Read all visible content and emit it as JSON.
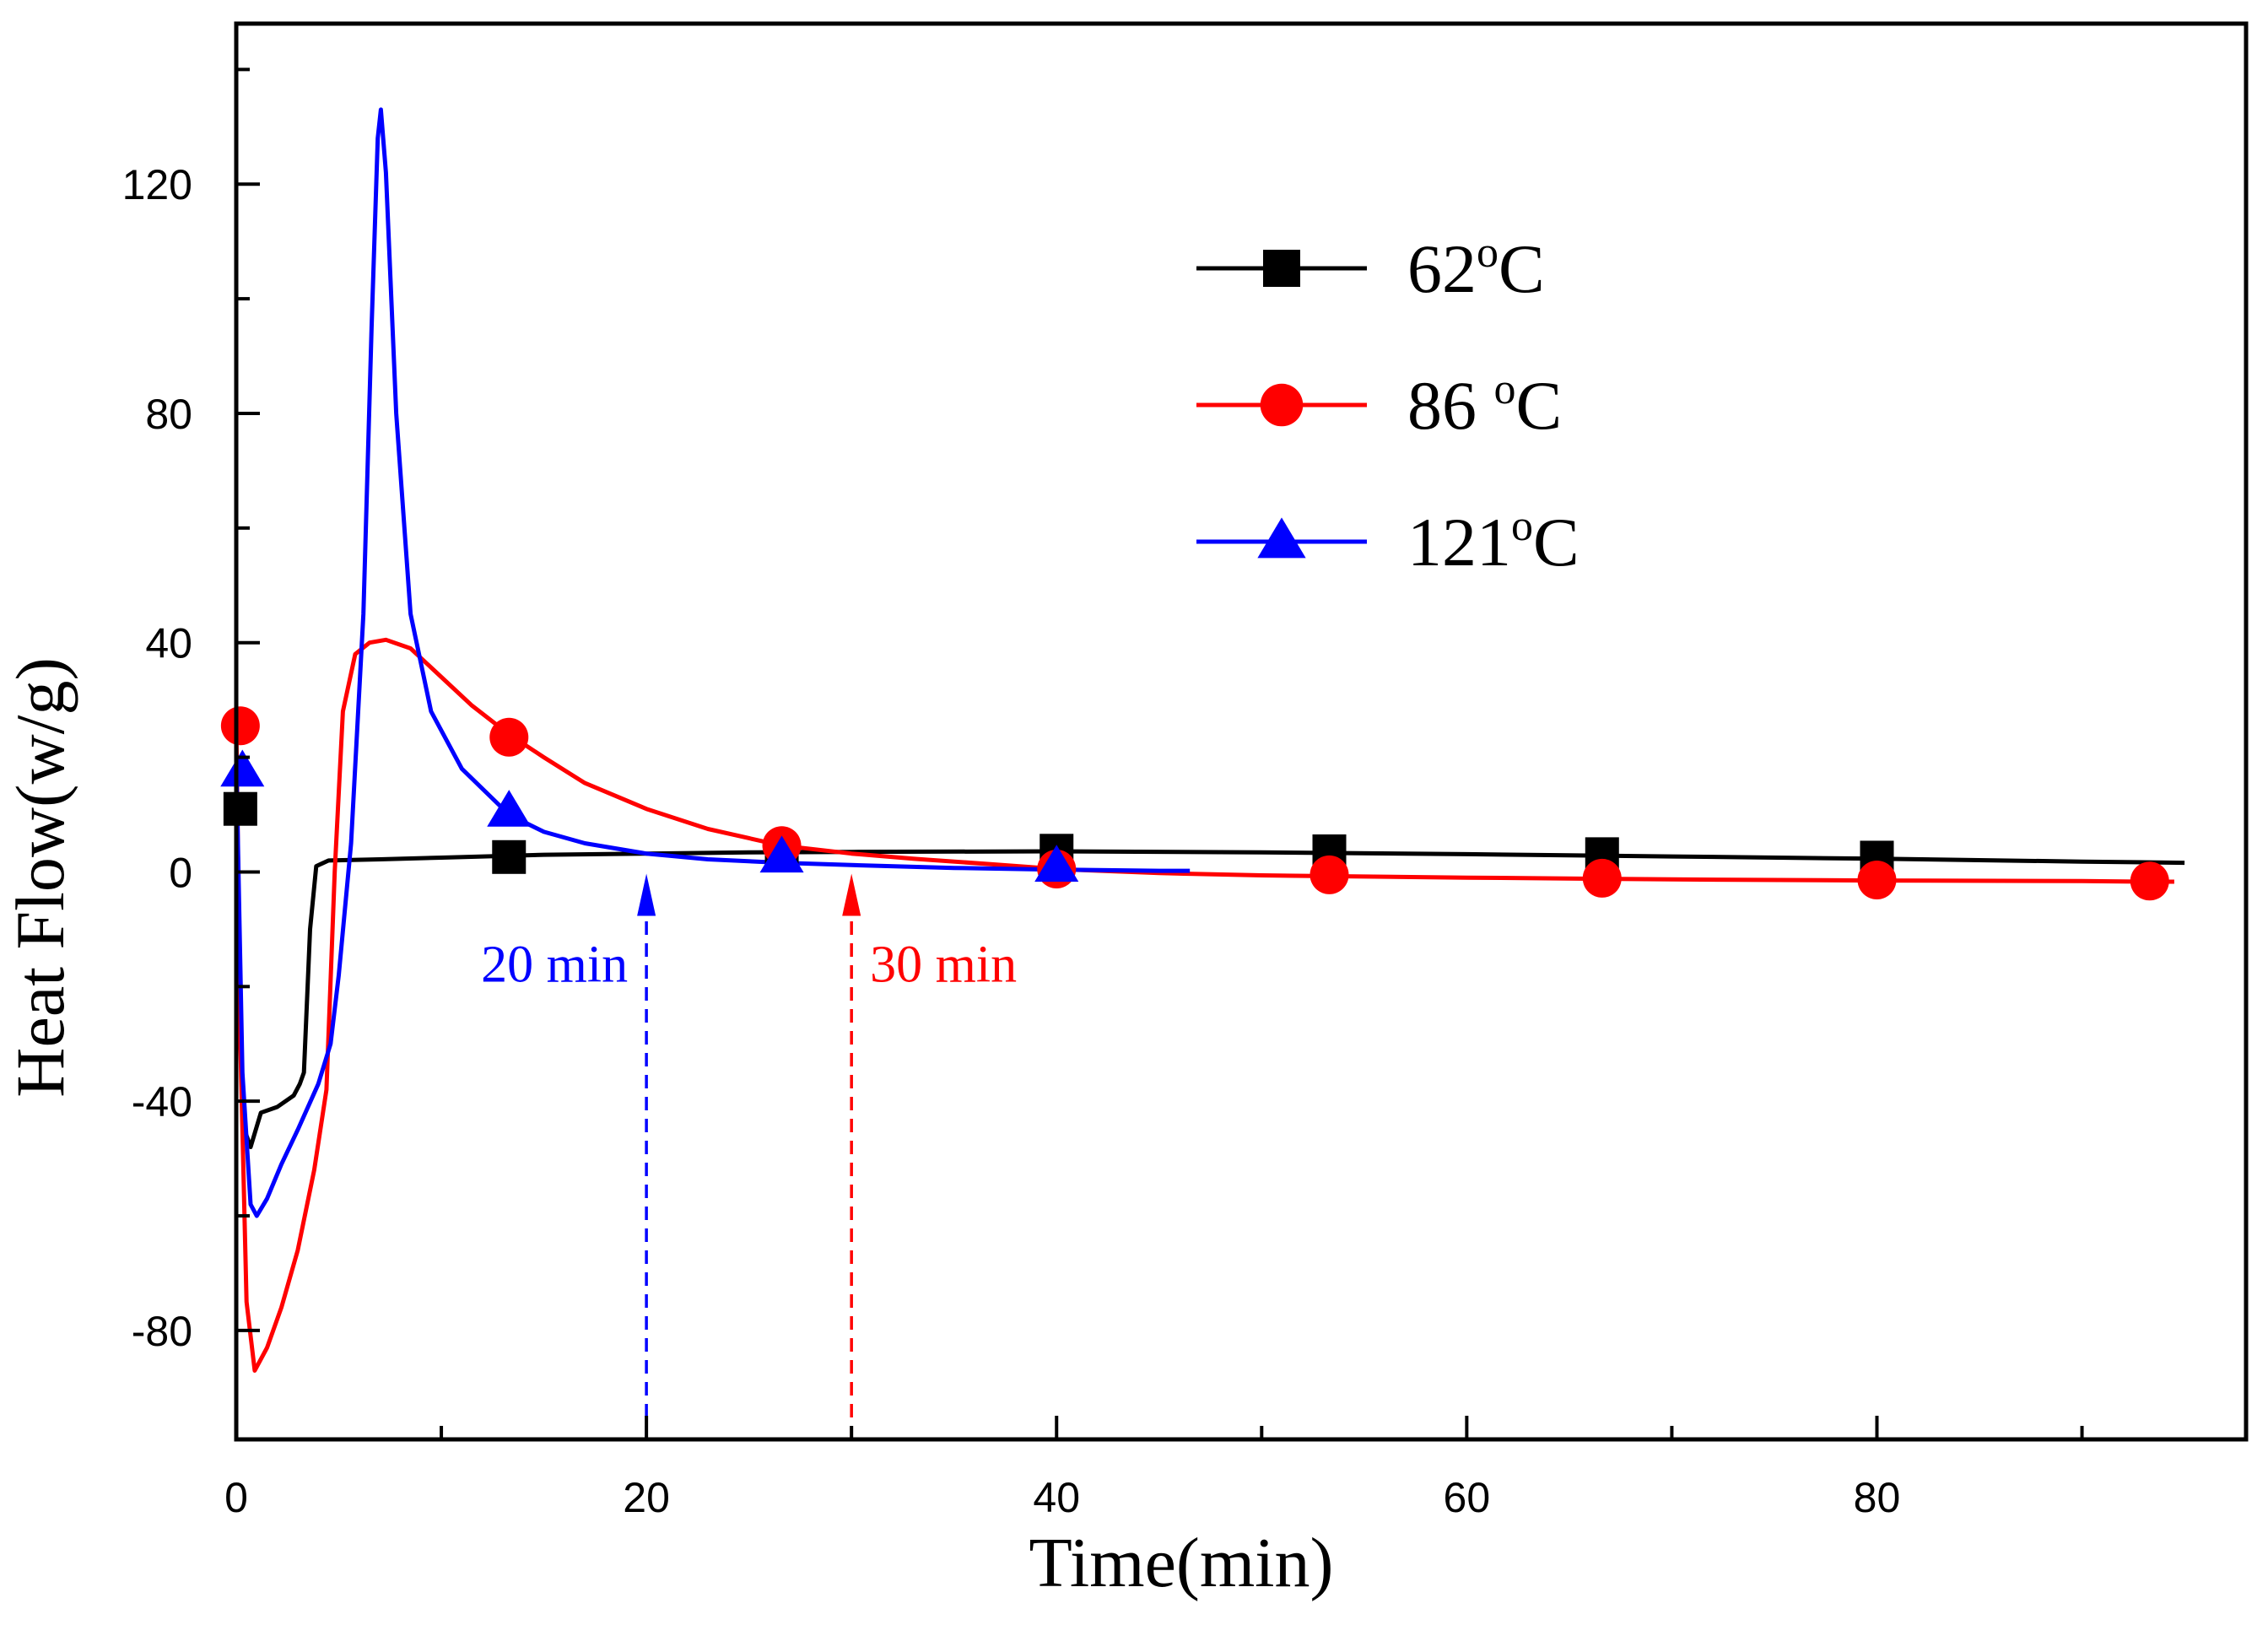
{
  "chart_data": {
    "type": "line",
    "title": "",
    "xlabel": "Time(min)",
    "ylabel": "Heat Flow(w/g)",
    "xlim": [
      0,
      98
    ],
    "ylim": [
      -99,
      148
    ],
    "xticks": [
      0,
      20,
      40,
      60,
      80
    ],
    "yticks": [
      -80,
      -40,
      0,
      40,
      80,
      120
    ],
    "x_minor_step": 10,
    "y_minor_step": 20,
    "grid": false,
    "legend_position": "top-right",
    "series": [
      {
        "name": "62",
        "unit": "oC",
        "legend_label": "62oC",
        "color": "#000000",
        "marker": "square",
        "curve": [
          [
            0,
            12
          ],
          [
            0.15,
            -25
          ],
          [
            0.4,
            -45
          ],
          [
            0.7,
            -48
          ],
          [
            1.2,
            -42
          ],
          [
            2.0,
            -41
          ],
          [
            2.8,
            -39
          ],
          [
            3.1,
            -37
          ],
          [
            3.3,
            -35
          ],
          [
            3.6,
            -10
          ],
          [
            3.9,
            1
          ],
          [
            4.5,
            2
          ],
          [
            7,
            2.2
          ],
          [
            10,
            2.5
          ],
          [
            15,
            3
          ],
          [
            20,
            3.2
          ],
          [
            25,
            3.4
          ],
          [
            30,
            3.5
          ],
          [
            40,
            3.6
          ],
          [
            50,
            3.4
          ],
          [
            60,
            3.1
          ],
          [
            70,
            2.7
          ],
          [
            80,
            2.3
          ],
          [
            90,
            1.8
          ],
          [
            95,
            1.6
          ]
        ],
        "markers": [
          [
            0.2,
            11
          ],
          [
            13.3,
            2.6
          ],
          [
            26.6,
            3.1
          ],
          [
            40,
            3.7
          ],
          [
            53.3,
            3.6
          ],
          [
            66.6,
            3.1
          ],
          [
            80,
            2.5
          ]
        ]
      },
      {
        "name": "86",
        "unit": "oC",
        "legend_label": "86 oC",
        "color": "#ff0000",
        "marker": "circle",
        "curve": [
          [
            0,
            26
          ],
          [
            0.2,
            -30
          ],
          [
            0.5,
            -75
          ],
          [
            0.9,
            -87
          ],
          [
            1.5,
            -83
          ],
          [
            2.2,
            -76
          ],
          [
            3.0,
            -66
          ],
          [
            3.8,
            -52
          ],
          [
            4.4,
            -38
          ],
          [
            4.8,
            0
          ],
          [
            5.2,
            28
          ],
          [
            5.8,
            38
          ],
          [
            6.5,
            40
          ],
          [
            7.3,
            40.5
          ],
          [
            8.5,
            39
          ],
          [
            10,
            34
          ],
          [
            11.5,
            29
          ],
          [
            13.3,
            24
          ],
          [
            15,
            20
          ],
          [
            17,
            15.5
          ],
          [
            20,
            11
          ],
          [
            23,
            7.5
          ],
          [
            26.6,
            4.6
          ],
          [
            30,
            3.2
          ],
          [
            33,
            2.3
          ],
          [
            37,
            1.3
          ],
          [
            40,
            0.5
          ],
          [
            45,
            -0.2
          ],
          [
            50,
            -0.6
          ],
          [
            55,
            -0.8
          ],
          [
            60,
            -1.0
          ],
          [
            66.6,
            -1.2
          ],
          [
            70,
            -1.3
          ],
          [
            80,
            -1.5
          ],
          [
            90,
            -1.6
          ],
          [
            93.3,
            -1.7
          ],
          [
            94.5,
            -1.7
          ]
        ],
        "markers": [
          [
            0.2,
            25.5
          ],
          [
            13.3,
            23.5
          ],
          [
            26.6,
            4.6
          ],
          [
            40,
            0.5
          ],
          [
            53.3,
            -0.5
          ],
          [
            66.6,
            -1.1
          ],
          [
            80,
            -1.4
          ],
          [
            93.3,
            -1.6
          ]
        ]
      },
      {
        "name": "121",
        "unit": "oC",
        "legend_label": "121oC",
        "color": "#0000ff",
        "marker": "triangle",
        "curve": [
          [
            0,
            20
          ],
          [
            0.3,
            -35
          ],
          [
            0.7,
            -58
          ],
          [
            1.0,
            -60
          ],
          [
            1.5,
            -57
          ],
          [
            2.2,
            -51
          ],
          [
            3.0,
            -45
          ],
          [
            4.0,
            -37
          ],
          [
            4.6,
            -30
          ],
          [
            5.0,
            -18
          ],
          [
            5.6,
            5
          ],
          [
            6.2,
            45
          ],
          [
            6.6,
            95
          ],
          [
            6.9,
            128
          ],
          [
            7.05,
            133
          ],
          [
            7.3,
            122
          ],
          [
            7.8,
            80
          ],
          [
            8.5,
            45
          ],
          [
            9.5,
            28
          ],
          [
            11,
            18
          ],
          [
            13.3,
            10
          ],
          [
            15,
            7
          ],
          [
            17,
            5
          ],
          [
            20,
            3.2
          ],
          [
            23,
            2.2
          ],
          [
            26.6,
            1.6
          ],
          [
            30,
            1.2
          ],
          [
            35,
            0.7
          ],
          [
            40,
            0.4
          ],
          [
            45,
            0.2
          ],
          [
            46.5,
            0.2
          ]
        ],
        "markers": [
          [
            0.3,
            17.5
          ],
          [
            13.3,
            10.5
          ],
          [
            26.6,
            2.5
          ],
          [
            40,
            0.9
          ]
        ]
      }
    ],
    "annotations": [
      {
        "text": "20 min",
        "x": 20,
        "color": "#0000ff",
        "side": "left"
      },
      {
        "text": "30 min",
        "x": 30,
        "color": "#ff0000",
        "side": "right"
      }
    ]
  }
}
